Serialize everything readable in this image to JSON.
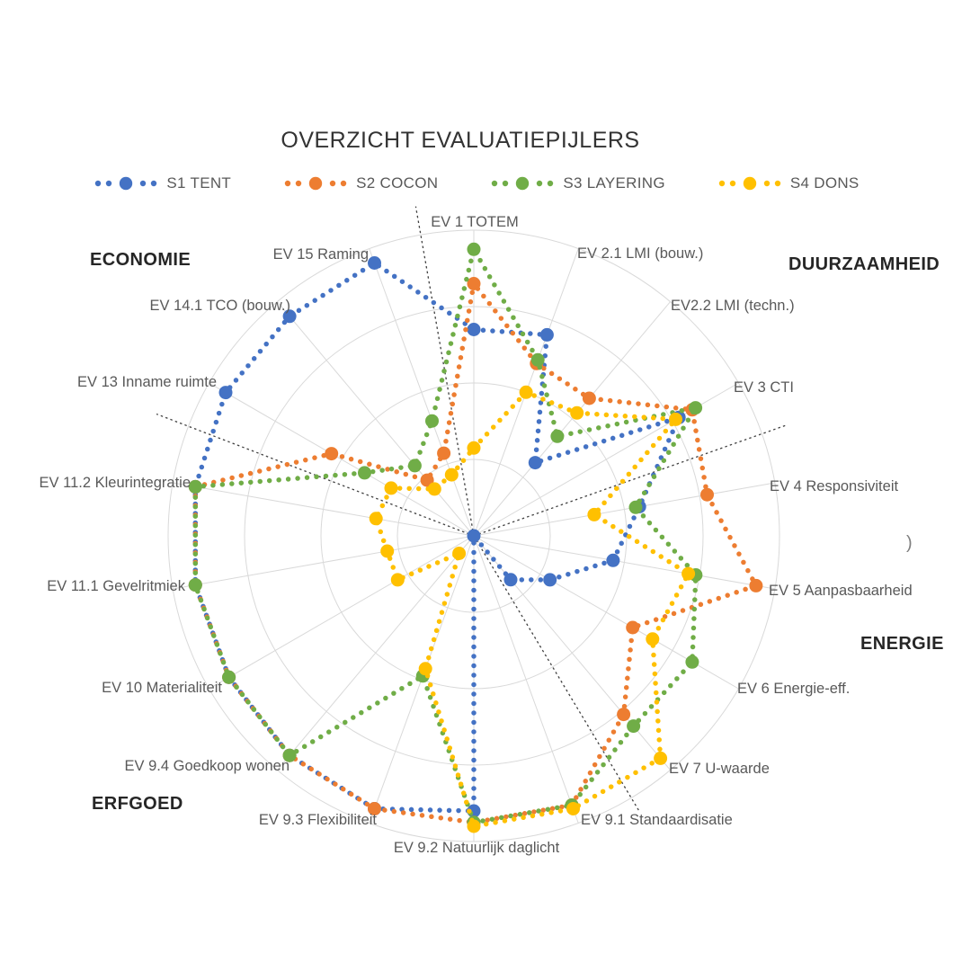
{
  "title": "OVERZICHT EVALUATIEPIJLERS",
  "stray_text": ")",
  "legend": {
    "items": [
      {
        "label": "S1 TENT",
        "color": "#4472C4"
      },
      {
        "label": "S2 COCON",
        "color": "#ED7D31"
      },
      {
        "label": "S3 LAYERING",
        "color": "#70AD47"
      },
      {
        "label": "S4 DONS",
        "color": "#FFC000"
      }
    ]
  },
  "category_labels": [
    {
      "label": "ECONOMIE"
    },
    {
      "label": "DUURZAAMHEID"
    },
    {
      "label": "ENERGIE"
    },
    {
      "label": "ERFGOED"
    }
  ],
  "chart_data": {
    "type": "radar",
    "axis_max": 4,
    "rings": [
      1,
      2,
      3,
      4
    ],
    "grid": "circular",
    "legend_position": "top",
    "axes": [
      "EV 1 TOTEM",
      "EV 2.1 LMI (bouw.)",
      "EV2.2 LMI (techn.)",
      "EV 3 CTI",
      "EV 4 Responsiviteit",
      "EV 5 Aanpasbaarheid",
      "EV 6 Energie-eff.",
      "EV 7 U-waarde",
      "EV 9.1 Standaardisatie",
      "EV 9.2 Natuurlijk daglicht",
      "EV 9.3 Flexibiliteit",
      "EV 9.4 Goedkoop wonen",
      "EV 10 Materialiteit",
      "EV 11.1 Gevelritmiek",
      "EV 11.2 Kleurintegratie",
      "EV 13 Inname ruimte",
      "EV 14.1 TCO (bouw.)",
      "EV 15 Raming"
    ],
    "series": [
      {
        "name": "S1 TENT",
        "color": "#4472C4",
        "values": [
          2.7,
          2.8,
          1.25,
          3.1,
          2.2,
          1.85,
          1.15,
          0.75,
          0.0,
          3.6,
          3.8,
          3.75,
          3.7,
          3.7,
          3.7,
          3.75,
          3.75,
          3.8
        ]
      },
      {
        "name": "S2 COCON",
        "color": "#ED7D31",
        "values": [
          3.3,
          2.4,
          2.35,
          3.3,
          3.1,
          3.75,
          2.4,
          3.05,
          3.75,
          3.75,
          3.8,
          3.75,
          3.7,
          3.7,
          3.7,
          2.15,
          0.95,
          1.15
        ]
      },
      {
        "name": "S3 LAYERING",
        "color": "#70AD47",
        "values": [
          3.75,
          2.45,
          1.7,
          3.35,
          2.15,
          2.95,
          3.3,
          3.25,
          3.75,
          3.75,
          1.95,
          3.75,
          3.7,
          3.7,
          3.7,
          1.65,
          1.2,
          1.6
        ]
      },
      {
        "name": "S4 DONS",
        "color": "#FFC000",
        "values": [
          1.15,
          2.0,
          2.1,
          3.05,
          1.6,
          2.85,
          2.7,
          3.8,
          3.8,
          3.8,
          1.85,
          0.3,
          1.15,
          1.15,
          1.3,
          1.25,
          0.8,
          0.85
        ]
      }
    ],
    "sector_dividers_deg": [
      350,
      70.5,
      149,
      291
    ]
  }
}
